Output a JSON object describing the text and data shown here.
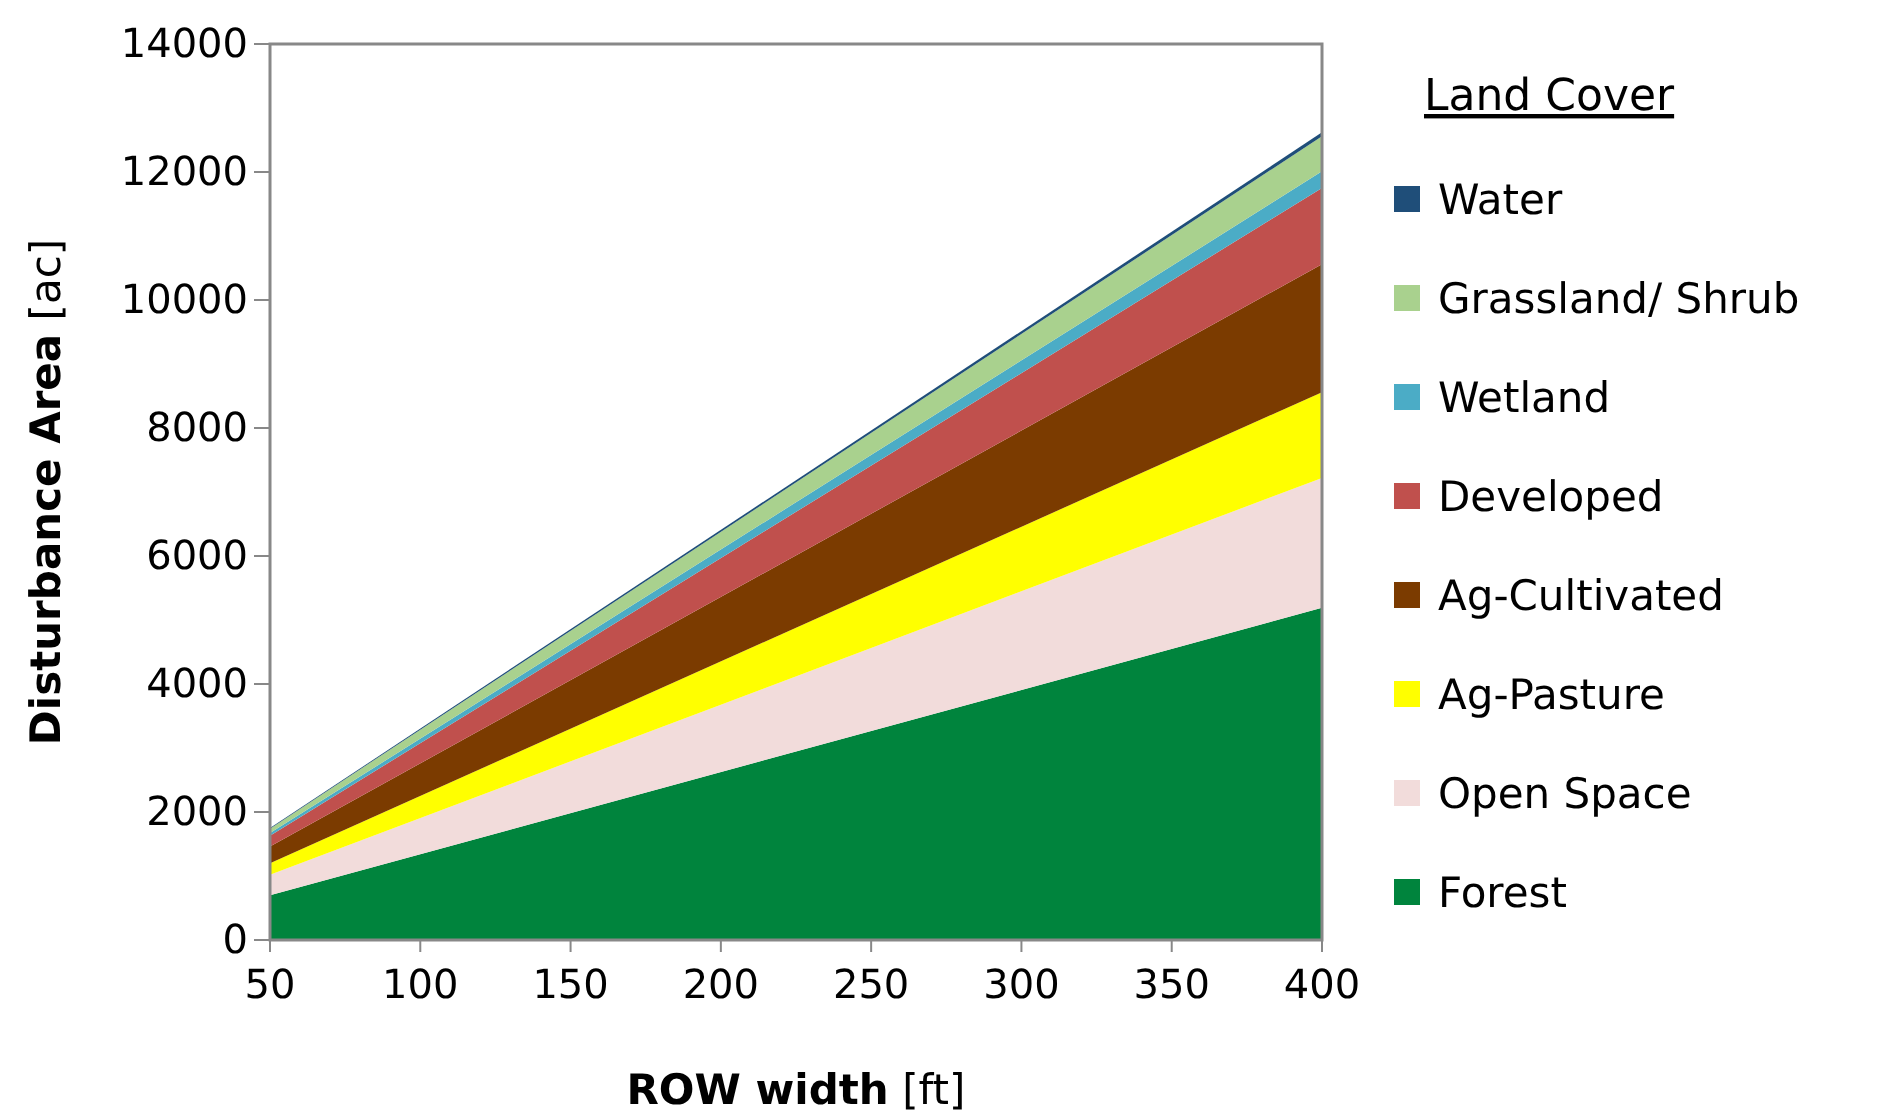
{
  "chart_data": {
    "type": "area",
    "stacked": true,
    "xlabel": "ROW width [ft]",
    "ylabel": "Disturbance Area [ac]",
    "legend_title": "Land Cover",
    "legend": "right",
    "grid": false,
    "x": [
      50,
      400
    ],
    "xlim": [
      50,
      400
    ],
    "xticks": [
      50,
      100,
      150,
      200,
      250,
      300,
      350,
      400
    ],
    "ylim": [
      0,
      14000
    ],
    "yticks": [
      0,
      2000,
      4000,
      6000,
      8000,
      10000,
      12000,
      14000
    ],
    "series": [
      {
        "name": "Forest",
        "color": "#00843d",
        "values": [
          700,
          5190
        ]
      },
      {
        "name": "Open Space",
        "color": "#f2dcdb",
        "values": [
          320,
          2030
        ]
      },
      {
        "name": "Ag-Pasture",
        "color": "#ffff00",
        "values": [
          180,
          1340
        ]
      },
      {
        "name": "Ag-Cultivated",
        "color": "#7b3b00",
        "values": [
          260,
          2000
        ]
      },
      {
        "name": "Developed",
        "color": "#c0504d",
        "values": [
          170,
          1190
        ]
      },
      {
        "name": "Wetland",
        "color": "#4bacc6",
        "values": [
          40,
          260
        ]
      },
      {
        "name": "Grassland/ Shrub",
        "color": "#a9d18e",
        "values": [
          70,
          550
        ]
      },
      {
        "name": "Water",
        "color": "#1f4e79",
        "values": [
          10,
          60
        ]
      }
    ]
  }
}
